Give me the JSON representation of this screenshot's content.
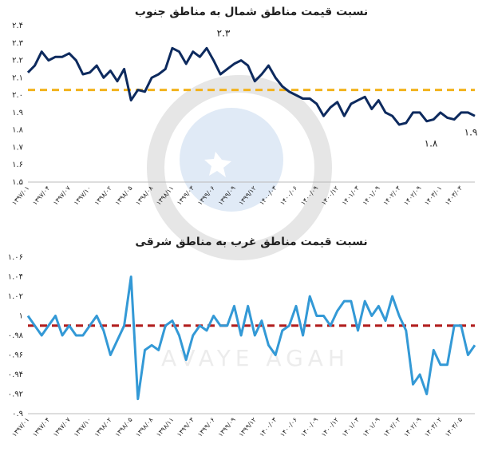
{
  "chart_data": [
    {
      "type": "line",
      "title": "نسبت قیمت مناطق شمال به مناطق جنوب",
      "categories": [
        "۱۳۹۷/۰۱",
        null,
        null,
        "۱۳۹۷/۰۴",
        null,
        null,
        "۱۳۹۷/۰۷",
        null,
        null,
        "۱۳۹۷/۱۰",
        null,
        null,
        "۱۳۹۸/۰۲",
        null,
        null,
        "۱۳۹۸/۰۵",
        null,
        null,
        "۱۳۹۸/۰۸",
        null,
        null,
        "۱۳۹۸/۱۱",
        null,
        null,
        "۱۳۹۹/۰۳",
        null,
        null,
        "۱۳۹۹/۰۶",
        null,
        null,
        "۱۳۹۹/۰۹",
        null,
        null,
        "۱۳۹۹/۱۲",
        null,
        null,
        "۱۴۰۰/۰۳",
        null,
        null,
        "۱۴۰۰/۰۶",
        null,
        null,
        "۱۴۰۰/۰۹",
        null,
        null,
        "۱۴۰۰/۱۲",
        null,
        null,
        "۱۴۰۱/۰۳",
        null,
        null,
        "۱۴۰۱/۰۹",
        null,
        null,
        "۱۴۰۲/۰۳",
        null,
        null,
        "۱۴۰۲/۰۹",
        null,
        null,
        "۱۴۰۳/۰۱",
        null,
        null,
        "۱۴۰۳/۰۳",
        null,
        null
      ],
      "series": [
        {
          "color": "#0d2a5e",
          "values": [
            2.13,
            2.17,
            2.25,
            2.2,
            2.22,
            2.22,
            2.24,
            2.2,
            2.12,
            2.13,
            2.17,
            2.1,
            2.14,
            2.08,
            2.15,
            1.97,
            2.03,
            2.02,
            2.1,
            2.12,
            2.15,
            2.27,
            2.25,
            2.18,
            2.25,
            2.22,
            2.27,
            2.2,
            2.12,
            2.15,
            2.18,
            2.2,
            2.17,
            2.08,
            2.12,
            2.17,
            2.1,
            2.05,
            2.02,
            2.0,
            1.98,
            1.98,
            1.95,
            1.88,
            1.93,
            1.96,
            1.88,
            1.95,
            1.97,
            1.99,
            1.92,
            1.97,
            1.9,
            1.88,
            1.83,
            1.84,
            1.9,
            1.9,
            1.85,
            1.86,
            1.9,
            1.87,
            1.86,
            1.9,
            1.9,
            1.88
          ]
        }
      ],
      "reference_line": {
        "value": 2.03,
        "color": "#f2b21c"
      },
      "annotations": [
        "۲.۳",
        "۱.۸",
        "۱.۹"
      ],
      "ylim": [
        1.5,
        2.4
      ],
      "yticks": [
        {
          "value": 1.5,
          "label": "۱.۵"
        },
        {
          "value": 1.6,
          "label": "۱.۶"
        },
        {
          "value": 1.7,
          "label": "۱.۷"
        },
        {
          "value": 1.8,
          "label": "۱.۸"
        },
        {
          "value": 1.9,
          "label": "۱.۹"
        },
        {
          "value": 2.0,
          "label": "۲.۰"
        },
        {
          "value": 2.1,
          "label": "۲.۱"
        },
        {
          "value": 2.2,
          "label": "۲.۲"
        },
        {
          "value": 2.3,
          "label": "۲.۳"
        },
        {
          "value": 2.4,
          "label": "۲.۴"
        }
      ],
      "grid": false
    },
    {
      "type": "line",
      "title": "نسبت قیمت مناطق غرب به مناطق شرقی",
      "categories": [
        "۱۳۹۷/۰۱",
        null,
        null,
        "۱۳۹۷/۰۴",
        null,
        null,
        "۱۳۹۷/۰۷",
        null,
        null,
        "۱۳۹۷/۱۰",
        null,
        null,
        "۱۳۹۸/۰۲",
        null,
        null,
        "۱۳۹۸/۰۵",
        null,
        null,
        "۱۳۹۸/۰۸",
        null,
        null,
        "۱۳۹۸/۱۱",
        null,
        null,
        "۱۳۹۹/۰۳",
        null,
        null,
        "۱۳۹۹/۰۶",
        null,
        null,
        "۱۳۹۹/۰۹",
        null,
        null,
        "۱۳۹۹/۱۲",
        null,
        null,
        "۱۴۰۰/۰۳",
        null,
        null,
        "۱۴۰۰/۰۶",
        null,
        null,
        "۱۴۰۰/۰۹",
        null,
        null,
        "۱۴۰۰/۱۲",
        null,
        null,
        "۱۴۰۱/۰۳",
        null,
        null,
        "۱۴۰۱/۰۹",
        null,
        null,
        "۱۴۰۲/۰۳",
        null,
        null,
        "۱۴۰۲/۰۹",
        null,
        null,
        "۱۴۰۳/۰۲",
        null,
        null,
        "۱۴۰۳/۰۵",
        null,
        null
      ],
      "series": [
        {
          "color": "#3399d6",
          "values": [
            1.0,
            0.99,
            0.98,
            0.99,
            1.0,
            0.98,
            0.99,
            0.98,
            0.98,
            0.99,
            1.0,
            0.985,
            0.96,
            0.975,
            0.99,
            1.04,
            0.915,
            0.965,
            0.97,
            0.965,
            0.99,
            0.995,
            0.98,
            0.955,
            0.98,
            0.99,
            0.985,
            1.0,
            0.99,
            0.99,
            1.01,
            0.98,
            1.01,
            0.98,
            0.995,
            0.97,
            0.96,
            0.985,
            0.99,
            1.01,
            0.98,
            1.02,
            1.0,
            1.0,
            0.99,
            1.005,
            1.015,
            1.015,
            0.985,
            1.015,
            1.0,
            1.01,
            0.995,
            1.02,
            1.0,
            0.985,
            0.93,
            0.94,
            0.92,
            0.965,
            0.95,
            0.95,
            0.99,
            0.99,
            0.96,
            0.97
          ]
        }
      ],
      "reference_line": {
        "value": 0.99,
        "color": "#b01c1c"
      },
      "ylim": [
        0.9,
        1.06
      ],
      "yticks": [
        {
          "value": 0.9,
          "label": "۰.۹"
        },
        {
          "value": 0.92,
          "label": "۰.۹۲"
        },
        {
          "value": 0.94,
          "label": "۰.۹۴"
        },
        {
          "value": 0.96,
          "label": "۰.۹۶"
        },
        {
          "value": 0.98,
          "label": "۰.۹۸"
        },
        {
          "value": 1,
          "label": "۱"
        },
        {
          "value": 1.02,
          "label": "۱.۰۲"
        },
        {
          "value": 1.04,
          "label": "۱.۰۴"
        },
        {
          "value": 1.06,
          "label": "۱.۰۶"
        }
      ],
      "grid": false
    }
  ]
}
